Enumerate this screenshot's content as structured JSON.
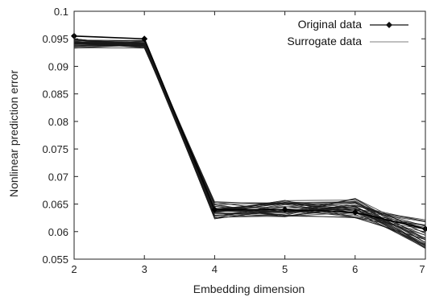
{
  "chart_data": {
    "type": "line",
    "title": "",
    "xlabel": "Embedding dimension",
    "ylabel": "Nonlinear prediction error",
    "xlim": [
      2,
      7
    ],
    "ylim": [
      0.055,
      0.1
    ],
    "x_ticks": [
      "2",
      "3",
      "4",
      "5",
      "6",
      "7"
    ],
    "y_ticks": [
      "0.055",
      "0.06",
      "0.065",
      "0.07",
      "0.075",
      "0.08",
      "0.085",
      "0.09",
      "0.095",
      "0.1"
    ],
    "grid": false,
    "legend_position": "top-right",
    "x": [
      2,
      3,
      4,
      5,
      6,
      7
    ],
    "series": [
      {
        "name": "Original data",
        "marker": "diamond",
        "values": [
          0.0955,
          0.095,
          0.064,
          0.064,
          0.0635,
          0.0605
        ]
      },
      {
        "name": "Surrogate data",
        "marker": "none",
        "count": 39,
        "band_low": [
          0.0933,
          0.0933,
          0.0622,
          0.0625,
          0.0625,
          0.0568
        ],
        "band_high": [
          0.095,
          0.0948,
          0.0655,
          0.0657,
          0.0661,
          0.0622
        ]
      }
    ]
  }
}
